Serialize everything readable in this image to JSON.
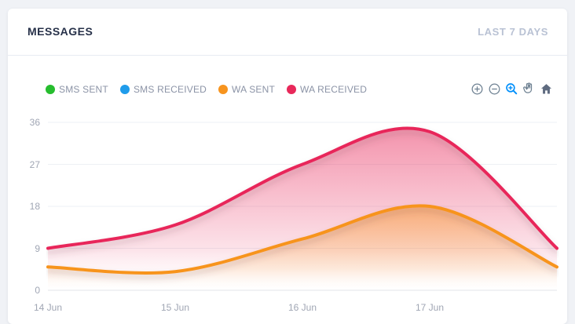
{
  "page": {
    "background": "#f0f2f6"
  },
  "card": {
    "title": "MESSAGES",
    "period_label": "LAST 7 DAYS"
  },
  "legend": {
    "items": [
      {
        "label": "SMS SENT",
        "color": "#26bd2e"
      },
      {
        "label": "SMS RECEIVED",
        "color": "#1f9ceb"
      },
      {
        "label": "WA SENT",
        "color": "#f7941e"
      },
      {
        "label": "WA RECEIVED",
        "color": "#e8285a"
      }
    ]
  },
  "toolbar": {
    "buttons": [
      "zoom-in",
      "zoom-out",
      "selection-zoom",
      "pan",
      "home"
    ],
    "active_button": "selection-zoom",
    "icon_color": "#6e8192",
    "active_color": "#008ffb"
  },
  "chart_data": {
    "type": "area",
    "curve": "smooth",
    "categories": [
      "14 Jun",
      "15 Jun",
      "16 Jun",
      "17 Jun",
      ""
    ],
    "visible_x_labels": [
      "14 Jun",
      "15 Jun",
      "16 Jun",
      "17 Jun"
    ],
    "series": [
      {
        "name": "SMS SENT",
        "color": "#26bd2e",
        "values": [
          0,
          0,
          0,
          0,
          0
        ]
      },
      {
        "name": "SMS RECEIVED",
        "color": "#1f9ceb",
        "values": [
          0,
          0,
          0,
          0,
          0
        ]
      },
      {
        "name": "WA SENT",
        "color": "#f7941e",
        "values": [
          5,
          4,
          11,
          18,
          5
        ]
      },
      {
        "name": "WA RECEIVED",
        "color": "#e8285a",
        "values": [
          9,
          14,
          27,
          34,
          9
        ]
      }
    ],
    "ylim": [
      0,
      36
    ],
    "yticks": [
      36,
      27,
      18,
      9,
      0
    ],
    "ytick_labels": [
      "36",
      "27",
      "18",
      "9",
      "0"
    ],
    "grid": true,
    "legend_position": "top-left",
    "line_width": 4
  }
}
